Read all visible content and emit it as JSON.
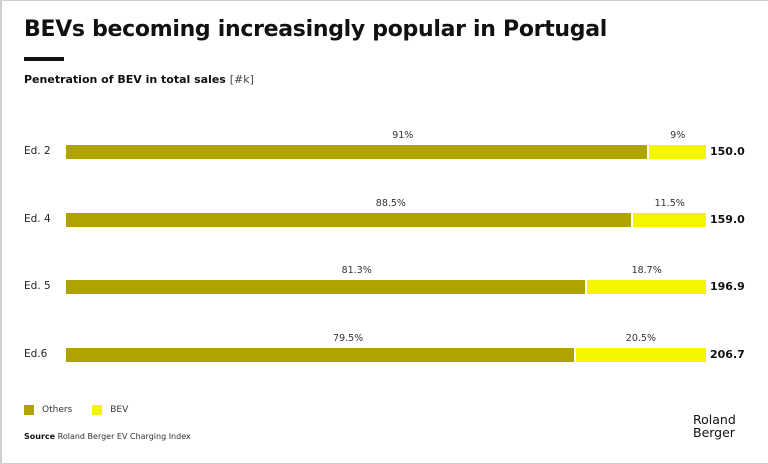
{
  "header": {
    "title": "BEVs becoming increasingly popular in Portugal",
    "subtitle": "Penetration of BEV in total sales",
    "unit": "[#k]"
  },
  "chart_data": {
    "type": "bar",
    "orientation": "horizontal",
    "stacked": true,
    "normalized_percent": true,
    "title": "Penetration of BEV in total sales [#k]",
    "categories": [
      "Ed. 2",
      "Ed. 4",
      "Ed. 5",
      "Ed.6"
    ],
    "series": [
      {
        "name": "Others",
        "color": "#b0a300",
        "values": [
          91,
          88.5,
          81.3,
          79.5
        ],
        "labels": [
          "91%",
          "88.5%",
          "81.3%",
          "79.5%"
        ]
      },
      {
        "name": "BEV",
        "color": "#f5f500",
        "values": [
          9,
          11.5,
          18.7,
          20.5
        ],
        "labels": [
          "9%",
          "11.5%",
          "18.7%",
          "20.5%"
        ]
      }
    ],
    "totals": [
      "150.0",
      "159.0",
      "196.9",
      "206.7"
    ],
    "xlim": [
      0,
      100
    ],
    "grid": false,
    "legend": "bottom-left"
  },
  "legend": {
    "items": [
      {
        "label": "Others",
        "color": "#b0a300"
      },
      {
        "label": "BEV",
        "color": "#f5f500"
      }
    ]
  },
  "footer": {
    "source_label": "Source",
    "source_text": "Roland Berger EV Charging Index",
    "logo_line1": "Roland",
    "logo_line2": "Berger"
  }
}
